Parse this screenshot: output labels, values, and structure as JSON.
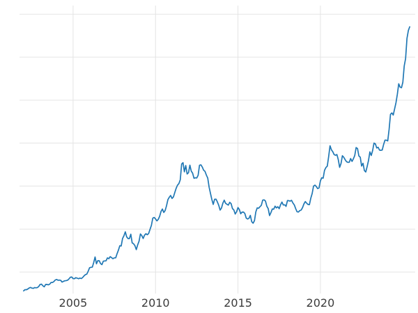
{
  "chart_data": {
    "type": "line",
    "title": "",
    "xlabel": "",
    "ylabel": "",
    "legend": null,
    "grid": true,
    "line_color": "#1f77b4",
    "line_width": 1.7,
    "grid_color": "#e4e4e4",
    "tick_label_color": "#3b3b3b",
    "background_color": "#ffffff",
    "x_domain": [
      2001.75,
      2025.75
    ],
    "ylim": [
      250,
      3600
    ],
    "y_gridlines": [
      500,
      1000,
      1500,
      2000,
      2500,
      3000,
      3500
    ],
    "x_ticks": [
      2005,
      2010,
      2015,
      2020
    ],
    "x_tick_labels": [
      "2005",
      "2010",
      "2015",
      "2020"
    ],
    "x_start": 2002.0,
    "x_interval": "monthly",
    "values": [
      281,
      295,
      294,
      302,
      314,
      321,
      313,
      310,
      319,
      316,
      319,
      332,
      356,
      359,
      340,
      328,
      355,
      356,
      351,
      359,
      379,
      378,
      389,
      407,
      414,
      405,
      406,
      403,
      383,
      392,
      398,
      400,
      405,
      420,
      439,
      442,
      424,
      423,
      434,
      429,
      422,
      430,
      424,
      437,
      456,
      470,
      476,
      510,
      550,
      555,
      557,
      610,
      675,
      596,
      633,
      632,
      598,
      586,
      627,
      629,
      631,
      665,
      655,
      679,
      667,
      655,
      665,
      665,
      713,
      755,
      806,
      803,
      890,
      922,
      968,
      909,
      889,
      889,
      940,
      839,
      829,
      807,
      761,
      816,
      858,
      943,
      924,
      890,
      929,
      946,
      934,
      949,
      997,
      1043,
      1127,
      1135,
      1118,
      1095,
      1113,
      1149,
      1205,
      1233,
      1193,
      1216,
      1271,
      1342,
      1370,
      1391,
      1356,
      1373,
      1424,
      1474,
      1511,
      1529,
      1573,
      1756,
      1772,
      1666,
      1739,
      1641,
      1656,
      1743,
      1674,
      1650,
      1591,
      1597,
      1594,
      1626,
      1742,
      1747,
      1722,
      1685,
      1671,
      1628,
      1593,
      1487,
      1414,
      1343,
      1287,
      1347,
      1348,
      1316,
      1276,
      1221,
      1244,
      1301,
      1336,
      1299,
      1288,
      1279,
      1311,
      1296,
      1238,
      1222,
      1175,
      1201,
      1250,
      1227,
      1178,
      1197,
      1198,
      1181,
      1128,
      1117,
      1125,
      1159,
      1086,
      1068,
      1097,
      1200,
      1246,
      1242,
      1260,
      1276,
      1337,
      1340,
      1326,
      1266,
      1238,
      1157,
      1192,
      1234,
      1231,
      1266,
      1246,
      1260,
      1237,
      1283,
      1314,
      1280,
      1282,
      1264,
      1331,
      1330,
      1325,
      1334,
      1303,
      1281,
      1238,
      1201,
      1198,
      1215,
      1221,
      1250,
      1292,
      1320,
      1301,
      1286,
      1284,
      1359,
      1413,
      1500,
      1511,
      1495,
      1471,
      1479,
      1561,
      1597,
      1592,
      1683,
      1716,
      1732,
      1843,
      1969,
      1922,
      1900,
      1866,
      1858,
      1867,
      1808,
      1718,
      1762,
      1853,
      1835,
      1807,
      1784,
      1776,
      1777,
      1820,
      1787,
      1817,
      1856,
      1948,
      1937,
      1850,
      1836,
      1733,
      1765,
      1681,
      1664,
      1726,
      1797,
      1898,
      1856,
      1913,
      2000,
      1992,
      1943,
      1951,
      1919,
      1916,
      1920,
      1984,
      2034,
      2034,
      2025,
      2160,
      2334,
      2351,
      2326,
      2398,
      2470,
      2568,
      2690,
      2651,
      2644,
      2708,
      2897,
      2983,
      3218,
      3309,
      3353
    ]
  }
}
